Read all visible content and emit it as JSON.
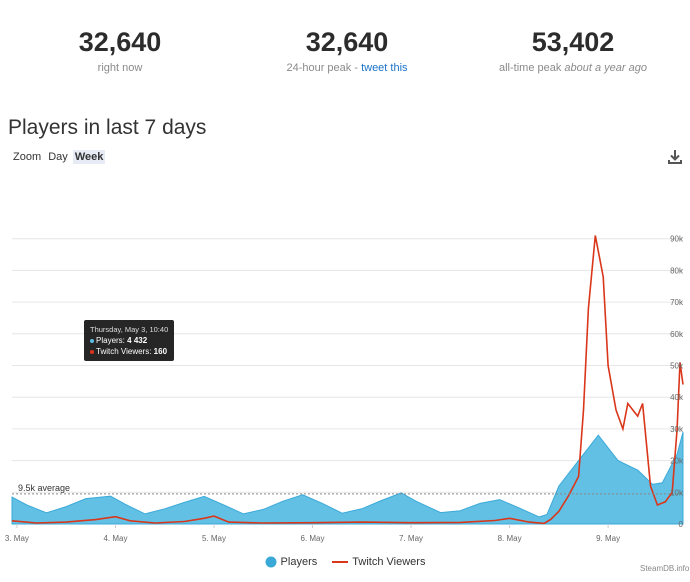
{
  "stats": [
    {
      "value": "32,640",
      "label": "right now"
    },
    {
      "value": "32,640",
      "label_prefix": "24-hour peak - ",
      "label_link": "tweet this"
    },
    {
      "value": "53,402",
      "label_prefix": "all-time peak ",
      "label_italic": "about a year ago"
    }
  ],
  "section_title": "Players in last 7 days",
  "zoom": {
    "label": "Zoom",
    "options": [
      "Day",
      "Week"
    ],
    "active": "Week"
  },
  "download_icon": "download-icon",
  "tooltip": {
    "title": "Thursday, May 3, 10:40",
    "players_label": "Players:",
    "players_value": "4 432",
    "twitch_label": "Twitch Viewers:",
    "twitch_value": "160"
  },
  "legend": {
    "players": "Players",
    "twitch": "Twitch Viewers"
  },
  "credit": "SteamDB.info",
  "colors": {
    "players": "#5bbde4",
    "twitch": "#d9361a",
    "grid": "#e6e6e6",
    "average": "#888888"
  },
  "chart_data": {
    "type": "area",
    "x_ticks": [
      "3. May",
      "4. May",
      "5. May",
      "6. May",
      "7. May",
      "8. May",
      "9. May"
    ],
    "y_ticks": [
      "0",
      "10k",
      "20k",
      "30k",
      "40k",
      "50k",
      "60k",
      "70k",
      "80k",
      "90k"
    ],
    "ylim": [
      0,
      100000
    ],
    "xlim_days": [
      2.95,
      9.76
    ],
    "average_label": "9.5k average",
    "average_value": 9500,
    "series": [
      {
        "name": "Players",
        "type": "area",
        "points": [
          [
            2.95,
            8500
          ],
          [
            3.1,
            6000
          ],
          [
            3.3,
            3500
          ],
          [
            3.5,
            5500
          ],
          [
            3.7,
            8000
          ],
          [
            3.95,
            8800
          ],
          [
            4.1,
            6200
          ],
          [
            4.3,
            3200
          ],
          [
            4.5,
            4800
          ],
          [
            4.7,
            6800
          ],
          [
            4.9,
            8700
          ],
          [
            5.1,
            6000
          ],
          [
            5.3,
            3200
          ],
          [
            5.5,
            4600
          ],
          [
            5.7,
            7200
          ],
          [
            5.9,
            9200
          ],
          [
            6.1,
            6500
          ],
          [
            6.3,
            3400
          ],
          [
            6.5,
            4800
          ],
          [
            6.7,
            7400
          ],
          [
            6.9,
            9800
          ],
          [
            7.05,
            7200
          ],
          [
            7.3,
            3600
          ],
          [
            7.5,
            4200
          ],
          [
            7.7,
            6500
          ],
          [
            7.9,
            7700
          ],
          [
            8.1,
            5000
          ],
          [
            8.3,
            2200
          ],
          [
            8.38,
            3000
          ],
          [
            8.5,
            12000
          ],
          [
            8.7,
            20000
          ],
          [
            8.9,
            28000
          ],
          [
            9.1,
            20000
          ],
          [
            9.3,
            17000
          ],
          [
            9.45,
            12500
          ],
          [
            9.55,
            13000
          ],
          [
            9.7,
            22000
          ],
          [
            9.76,
            29000
          ]
        ]
      },
      {
        "name": "Twitch Viewers",
        "type": "line",
        "points": [
          [
            2.95,
            1000
          ],
          [
            3.2,
            300
          ],
          [
            3.5,
            600
          ],
          [
            3.8,
            1400
          ],
          [
            4.0,
            2300
          ],
          [
            4.15,
            1000
          ],
          [
            4.4,
            300
          ],
          [
            4.7,
            800
          ],
          [
            4.9,
            1800
          ],
          [
            5.0,
            2500
          ],
          [
            5.15,
            600
          ],
          [
            5.5,
            300
          ],
          [
            6.0,
            400
          ],
          [
            6.5,
            600
          ],
          [
            7.0,
            400
          ],
          [
            7.5,
            500
          ],
          [
            7.85,
            1100
          ],
          [
            8.0,
            1800
          ],
          [
            8.2,
            600
          ],
          [
            8.35,
            200
          ],
          [
            8.42,
            1500
          ],
          [
            8.5,
            4000
          ],
          [
            8.6,
            9000
          ],
          [
            8.7,
            15000
          ],
          [
            8.75,
            36000
          ],
          [
            8.8,
            68000
          ],
          [
            8.87,
            91000
          ],
          [
            8.95,
            78000
          ],
          [
            9.0,
            50000
          ],
          [
            9.08,
            36000
          ],
          [
            9.15,
            30000
          ],
          [
            9.2,
            38000
          ],
          [
            9.3,
            34000
          ],
          [
            9.35,
            38000
          ],
          [
            9.43,
            12000
          ],
          [
            9.5,
            6000
          ],
          [
            9.58,
            7000
          ],
          [
            9.65,
            10000
          ],
          [
            9.7,
            30000
          ],
          [
            9.73,
            51000
          ],
          [
            9.76,
            44000
          ]
        ]
      }
    ]
  }
}
